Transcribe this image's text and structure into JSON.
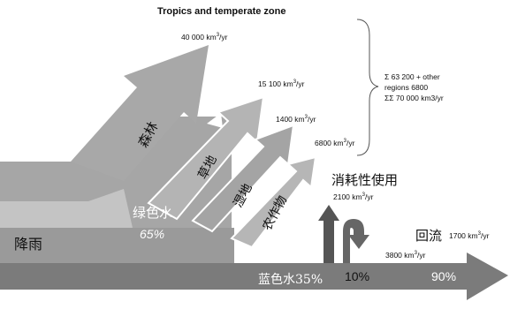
{
  "title": "Tropics and temperate zone",
  "rainfall_label": "降雨",
  "green_water": {
    "label": "绿色水",
    "percent": "65%"
  },
  "blue_water": {
    "label": "蓝色水35%",
    "pct_10": "10%",
    "pct_90": "90%"
  },
  "branches": [
    {
      "label": "森林",
      "value_prefix": "40 000 km",
      "value_suffix": "/yr"
    },
    {
      "label": "草地",
      "value_prefix": "15 100 km",
      "value_suffix": "/yr"
    },
    {
      "label": "湿地",
      "value_prefix": "1400 km",
      "value_suffix": "/yr"
    },
    {
      "label": "农作物",
      "value_prefix": "6800 km",
      "value_suffix": "/yr"
    }
  ],
  "superscript_3": "3",
  "summary": {
    "line1": "Σ 63 200 + other",
    "line2": "regions 6800",
    "line3": "ΣΣ 70 000 km3/yr"
  },
  "consumptive_use": {
    "label": "消耗性使用",
    "value_prefix": "2100 km",
    "value_suffix": "/yr"
  },
  "blue_flow": {
    "value_prefix": "3800 km",
    "value_suffix": "/yr"
  },
  "return_flow": {
    "label": "回流",
    "value_prefix": "1700 km",
    "value_suffix": "/yr"
  }
}
